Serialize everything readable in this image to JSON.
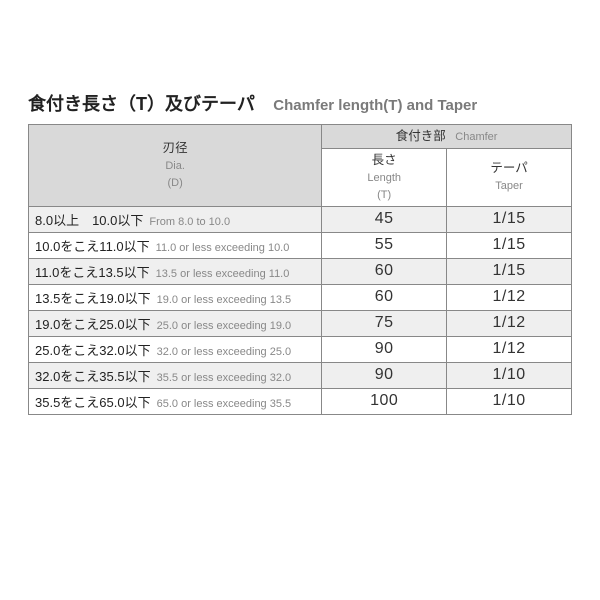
{
  "title": {
    "jp": "食付き長さ（T）及びテーパ",
    "en": "Chamfer length(T) and Taper"
  },
  "header": {
    "dia_jp": "刃径",
    "dia_en_line1": "Dia.",
    "dia_en_line2": "(D)",
    "chamfer_jp": "食付き部",
    "chamfer_en": "Chamfer",
    "length_jp": "長さ",
    "length_en_line1": "Length",
    "length_en_line2": "(T)",
    "taper_jp": "テーパ",
    "taper_en": "Taper"
  },
  "rows": [
    {
      "dia_jp": "8.0以上　10.0以下",
      "dia_en": "From 8.0 to 10.0",
      "length": "45",
      "taper": "1/15"
    },
    {
      "dia_jp": "10.0をこえ11.0以下",
      "dia_en": "11.0 or less exceeding 10.0",
      "length": "55",
      "taper": "1/15"
    },
    {
      "dia_jp": "11.0をこえ13.5以下",
      "dia_en": "13.5 or less exceeding 11.0",
      "length": "60",
      "taper": "1/15"
    },
    {
      "dia_jp": "13.5をこえ19.0以下",
      "dia_en": "19.0 or less exceeding 13.5",
      "length": "60",
      "taper": "1/12"
    },
    {
      "dia_jp": "19.0をこえ25.0以下",
      "dia_en": "25.0 or less exceeding 19.0",
      "length": "75",
      "taper": "1/12"
    },
    {
      "dia_jp": "25.0をこえ32.0以下",
      "dia_en": "32.0 or less exceeding 25.0",
      "length": "90",
      "taper": "1/12"
    },
    {
      "dia_jp": "32.0をこえ35.5以下",
      "dia_en": "35.5 or less exceeding 32.0",
      "length": "90",
      "taper": "1/10"
    },
    {
      "dia_jp": "35.5をこえ65.0以下",
      "dia_en": "65.0 or less exceeding 35.5",
      "length": "100",
      "taper": "1/10"
    }
  ],
  "style": {
    "header_bg": "#d9d9d9",
    "alt_row_bg": "#efefef",
    "border_color": "#888888",
    "text_color": "#333333",
    "muted_color": "#888888",
    "title_jp_fontsize": 18,
    "title_en_fontsize": 15,
    "cell_fontsize": 13
  }
}
